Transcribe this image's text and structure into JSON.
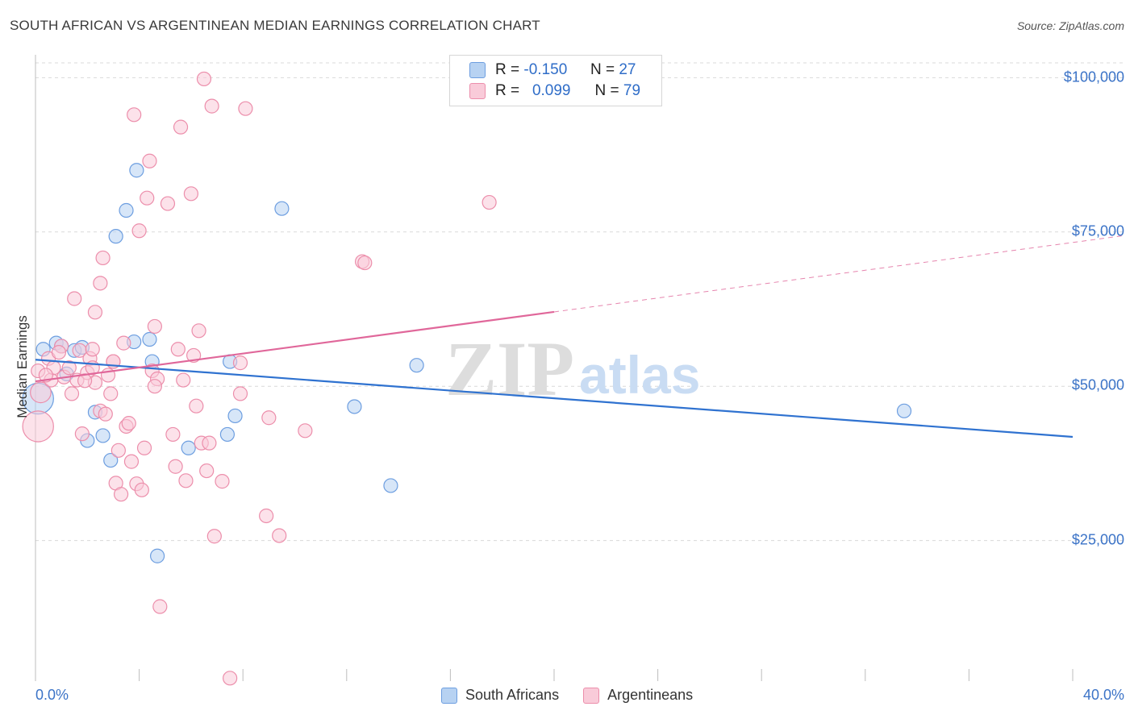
{
  "title": "SOUTH AFRICAN VS ARGENTINEAN MEDIAN EARNINGS CORRELATION CHART",
  "source": "Source: ZipAtlas.com",
  "watermark": {
    "zip": "ZIP",
    "atlas": "atlas"
  },
  "colors": {
    "blue_fill": "#b7d2f2",
    "blue_stroke": "#6d9ee0",
    "blue_line": "#2f72d0",
    "pink_fill": "#f9cbd9",
    "pink_stroke": "#ec8eab",
    "pink_line": "#e0679a",
    "axis_text": "#3b73c7",
    "grid": "#d9d9d9"
  },
  "legend": {
    "rows": [
      {
        "r_label": "R =",
        "r_value": "-0.150",
        "n_label": "N =",
        "n_value": "27"
      },
      {
        "r_label": "R =",
        "r_value": "0.099",
        "n_label": "N =",
        "n_value": "79"
      }
    ]
  },
  "bottom_legend": {
    "south_africans": "South Africans",
    "argentineans": "Argentineans"
  },
  "chart_data": {
    "type": "scatter",
    "title": "SOUTH AFRICAN VS ARGENTINEAN MEDIAN EARNINGS CORRELATION CHART",
    "xlabel": "",
    "ylabel": "Median Earnings",
    "xlim": [
      0,
      40
    ],
    "ylim": [
      0,
      105000
    ],
    "x_tick_labels": {
      "min": "0.0%",
      "max": "40.0%"
    },
    "y_ticks": [
      {
        "value": 25000,
        "label": "$25,000"
      },
      {
        "value": 50000,
        "label": "$50,000"
      },
      {
        "value": 75000,
        "label": "$75,000"
      },
      {
        "value": 100000,
        "label": "$100,000"
      }
    ],
    "grid": true,
    "series": [
      {
        "name": "South Africans",
        "color": "blue",
        "trend": {
          "x0": 0,
          "y0": 54300,
          "x1": 40,
          "y1": 41800,
          "dashed_from": null
        },
        "points": [
          [
            0.3,
            56000,
            1
          ],
          [
            0.8,
            57000,
            1
          ],
          [
            1.0,
            56500,
            1
          ],
          [
            1.5,
            55800,
            1
          ],
          [
            1.8,
            56300,
            1
          ],
          [
            1.2,
            52000,
            1
          ],
          [
            0.1,
            48000,
            3
          ],
          [
            2.3,
            45800,
            1
          ],
          [
            2.0,
            41200,
            1
          ],
          [
            2.6,
            42000,
            1
          ],
          [
            2.9,
            38000,
            1
          ],
          [
            3.5,
            78500,
            1
          ],
          [
            3.1,
            74300,
            1
          ],
          [
            3.9,
            85000,
            1
          ],
          [
            3.8,
            57200,
            1
          ],
          [
            4.4,
            57600,
            1
          ],
          [
            4.5,
            54000,
            1
          ],
          [
            4.7,
            22500,
            1
          ],
          [
            5.9,
            40000,
            1
          ],
          [
            7.5,
            54000,
            1
          ],
          [
            7.4,
            42200,
            1
          ],
          [
            7.7,
            45200,
            1
          ],
          [
            9.5,
            78800,
            1
          ],
          [
            12.3,
            46700,
            1
          ],
          [
            13.7,
            33900,
            1
          ],
          [
            14.7,
            53400,
            1
          ],
          [
            33.5,
            46000,
            1
          ]
        ]
      },
      {
        "name": "Argentineans",
        "color": "pink",
        "trend": {
          "x0": 0,
          "y0": 50800,
          "x1": 40,
          "y1": 73300,
          "dashed_from": 20
        },
        "points": [
          [
            0.1,
            52500,
            1
          ],
          [
            0.1,
            43500,
            3
          ],
          [
            0.2,
            49000,
            2
          ],
          [
            0.5,
            54500,
            1
          ],
          [
            0.6,
            51000,
            1
          ],
          [
            0.7,
            53000,
            1
          ],
          [
            1.0,
            56500,
            1
          ],
          [
            1.1,
            51500,
            1
          ],
          [
            1.3,
            53000,
            1
          ],
          [
            1.4,
            48800,
            1
          ],
          [
            1.5,
            64200,
            1
          ],
          [
            1.6,
            51000,
            1
          ],
          [
            1.7,
            55800,
            1
          ],
          [
            1.8,
            42300,
            1
          ],
          [
            2.0,
            52200,
            1
          ],
          [
            2.1,
            54500,
            1
          ],
          [
            2.2,
            53000,
            1
          ],
          [
            2.3,
            50600,
            1
          ],
          [
            2.3,
            62000,
            1
          ],
          [
            2.5,
            66700,
            1
          ],
          [
            2.5,
            46000,
            1
          ],
          [
            2.6,
            70800,
            1
          ],
          [
            2.7,
            45500,
            1
          ],
          [
            2.8,
            51800,
            1
          ],
          [
            2.9,
            48800,
            1
          ],
          [
            3.0,
            54000,
            1
          ],
          [
            3.1,
            34300,
            1
          ],
          [
            3.2,
            39600,
            1
          ],
          [
            3.3,
            32500,
            1
          ],
          [
            3.4,
            57000,
            1
          ],
          [
            3.5,
            43500,
            1
          ],
          [
            3.6,
            44000,
            1
          ],
          [
            3.7,
            37800,
            1
          ],
          [
            3.8,
            94000,
            1
          ],
          [
            3.9,
            34200,
            1
          ],
          [
            4.0,
            75200,
            1
          ],
          [
            4.1,
            33200,
            1
          ],
          [
            4.2,
            40000,
            1
          ],
          [
            4.3,
            80500,
            1
          ],
          [
            4.4,
            86500,
            1
          ],
          [
            4.5,
            52500,
            1
          ],
          [
            4.6,
            59700,
            1
          ],
          [
            4.7,
            51200,
            1
          ],
          [
            4.8,
            14300,
            1
          ],
          [
            5.1,
            79600,
            1
          ],
          [
            5.3,
            42200,
            1
          ],
          [
            5.4,
            37000,
            1
          ],
          [
            5.5,
            56000,
            1
          ],
          [
            5.6,
            92000,
            1
          ],
          [
            5.7,
            51000,
            1
          ],
          [
            5.8,
            34700,
            1
          ],
          [
            6.0,
            81200,
            1
          ],
          [
            6.1,
            55000,
            1
          ],
          [
            6.2,
            46800,
            1
          ],
          [
            6.3,
            59000,
            1
          ],
          [
            6.4,
            40800,
            1
          ],
          [
            6.5,
            99800,
            1
          ],
          [
            6.6,
            36300,
            1
          ],
          [
            6.8,
            95400,
            1
          ],
          [
            6.9,
            25700,
            1
          ],
          [
            7.2,
            34600,
            1
          ],
          [
            7.5,
            2700,
            1
          ],
          [
            7.9,
            53800,
            1
          ],
          [
            7.9,
            48800,
            1
          ],
          [
            8.1,
            95000,
            1
          ],
          [
            8.9,
            29000,
            1
          ],
          [
            9.0,
            44900,
            1
          ],
          [
            9.4,
            25800,
            1
          ],
          [
            10.4,
            42800,
            1
          ],
          [
            12.6,
            70200,
            1
          ],
          [
            17.5,
            79800,
            1
          ],
          [
            0.9,
            55500,
            1
          ],
          [
            1.9,
            50900,
            1
          ],
          [
            2.2,
            56000,
            1
          ],
          [
            3.0,
            54000,
            1
          ],
          [
            4.6,
            50000,
            1
          ],
          [
            6.7,
            40800,
            1
          ],
          [
            12.7,
            70000,
            1
          ],
          [
            0.4,
            51800,
            1
          ]
        ]
      }
    ]
  }
}
